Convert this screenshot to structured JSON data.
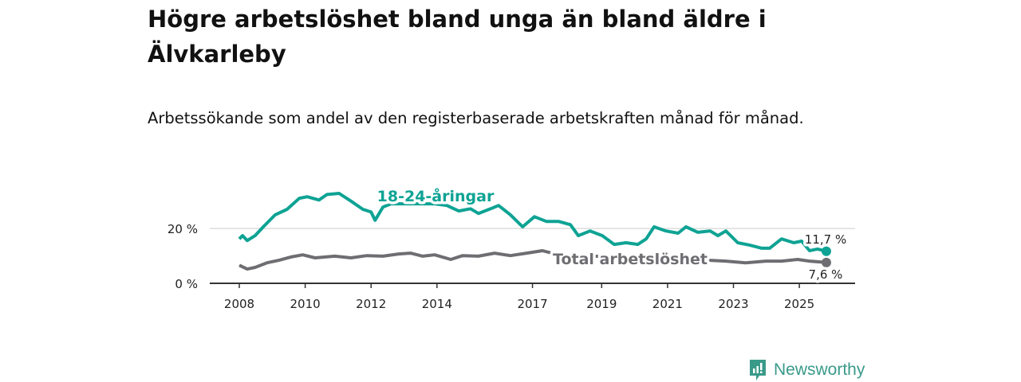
{
  "header": {
    "title": "Högre arbetslöshet bland unga än bland äldre i Älvkarleby",
    "subtitle": "Arbetssökande som andel av den registerbaserade arbetskraften månad för månad."
  },
  "chart_data": {
    "type": "line",
    "ylim": [
      0,
      36
    ],
    "xlim": [
      2007.1,
      2026.7
    ],
    "yticks": [
      {
        "value": 0,
        "label": "0 %"
      },
      {
        "value": 20,
        "label": "20 %"
      }
    ],
    "xticks": [
      {
        "value": 2008,
        "label": "2008"
      },
      {
        "value": 2010,
        "label": "2010"
      },
      {
        "value": 2012,
        "label": "2012"
      },
      {
        "value": 2014,
        "label": "2014"
      },
      {
        "value": 2016.9,
        "label": "2017"
      },
      {
        "value": 2019,
        "label": "2019"
      },
      {
        "value": 2021,
        "label": "2021"
      },
      {
        "value": 2023,
        "label": "2023"
      },
      {
        "value": 2025,
        "label": "2025"
      }
    ],
    "grid": "horizontal at 20 %",
    "series": [
      {
        "name": "18-24-åringar",
        "color": "#0ea394",
        "end_label": "11,7 %",
        "points": [
          [
            2008.0,
            16.2
          ],
          [
            2008.1,
            17.4
          ],
          [
            2008.24,
            15.6
          ],
          [
            2008.48,
            17.4
          ],
          [
            2008.73,
            20.6
          ],
          [
            2009.09,
            25
          ],
          [
            2009.45,
            27
          ],
          [
            2009.82,
            31
          ],
          [
            2010.06,
            31.6
          ],
          [
            2010.42,
            30.4
          ],
          [
            2010.66,
            32.4
          ],
          [
            2011.03,
            32.8
          ],
          [
            2011.39,
            30
          ],
          [
            2011.75,
            27
          ],
          [
            2012.0,
            26
          ],
          [
            2012.12,
            23
          ],
          [
            2012.36,
            27.8
          ],
          [
            2012.6,
            29
          ],
          [
            2013.33,
            29
          ],
          [
            2013.93,
            29
          ],
          [
            2014.3,
            28.4
          ],
          [
            2014.66,
            26.4
          ],
          [
            2015.02,
            27.2
          ],
          [
            2015.26,
            25.5
          ],
          [
            2015.63,
            27.2
          ],
          [
            2015.87,
            28.4
          ],
          [
            2016.23,
            25
          ],
          [
            2016.6,
            20.6
          ],
          [
            2016.96,
            24.3
          ],
          [
            2017.32,
            22.6
          ],
          [
            2017.69,
            22.6
          ],
          [
            2018.05,
            21.4
          ],
          [
            2018.29,
            17.4
          ],
          [
            2018.65,
            19.1
          ],
          [
            2019.02,
            17.4
          ],
          [
            2019.38,
            14.2
          ],
          [
            2019.74,
            14.8
          ],
          [
            2020.1,
            14.2
          ],
          [
            2020.35,
            16.2
          ],
          [
            2020.59,
            20.6
          ],
          [
            2020.95,
            19.1
          ],
          [
            2021.32,
            18.3
          ],
          [
            2021.56,
            20.6
          ],
          [
            2021.92,
            18.6
          ],
          [
            2022.29,
            19.1
          ],
          [
            2022.53,
            17.4
          ],
          [
            2022.77,
            19.1
          ],
          [
            2023.13,
            14.8
          ],
          [
            2023.5,
            13.9
          ],
          [
            2023.86,
            12.8
          ],
          [
            2024.1,
            12.8
          ],
          [
            2024.46,
            16.2
          ],
          [
            2024.83,
            14.8
          ],
          [
            2025.07,
            15.4
          ],
          [
            2025.31,
            11.9
          ],
          [
            2025.55,
            12.5
          ],
          [
            2025.82,
            11.7
          ]
        ]
      },
      {
        "name": "Total arbetslöshet",
        "color": "#6e6e72",
        "end_label": "7,6 %",
        "points": [
          [
            2008.0,
            6.6
          ],
          [
            2008.24,
            5.2
          ],
          [
            2008.48,
            5.8
          ],
          [
            2008.84,
            7.5
          ],
          [
            2009.2,
            8.4
          ],
          [
            2009.57,
            9.6
          ],
          [
            2009.93,
            10.4
          ],
          [
            2010.3,
            9.3
          ],
          [
            2010.9,
            9.9
          ],
          [
            2011.39,
            9.3
          ],
          [
            2011.87,
            10.1
          ],
          [
            2012.36,
            9.9
          ],
          [
            2012.84,
            10.7
          ],
          [
            2013.2,
            11
          ],
          [
            2013.57,
            9.9
          ],
          [
            2013.93,
            10.4
          ],
          [
            2014.42,
            8.7
          ],
          [
            2014.78,
            10.1
          ],
          [
            2015.26,
            9.9
          ],
          [
            2015.75,
            11
          ],
          [
            2016.23,
            10.1
          ],
          [
            2016.72,
            11
          ],
          [
            2017.2,
            11.9
          ],
          [
            2017.69,
            10.4
          ],
          [
            2018.5,
            10
          ],
          [
            2019.5,
            9.6
          ],
          [
            2020.5,
            9.2
          ],
          [
            2021.5,
            8.9
          ],
          [
            2022.1,
            8.6
          ],
          [
            2022.29,
            8.4
          ],
          [
            2022.77,
            8.1
          ],
          [
            2023.37,
            7.5
          ],
          [
            2023.98,
            8.1
          ],
          [
            2024.46,
            8.1
          ],
          [
            2024.95,
            8.7
          ],
          [
            2025.31,
            8.1
          ],
          [
            2025.82,
            7.6
          ]
        ]
      }
    ]
  },
  "footer": {
    "brand": "Newsworthy"
  }
}
